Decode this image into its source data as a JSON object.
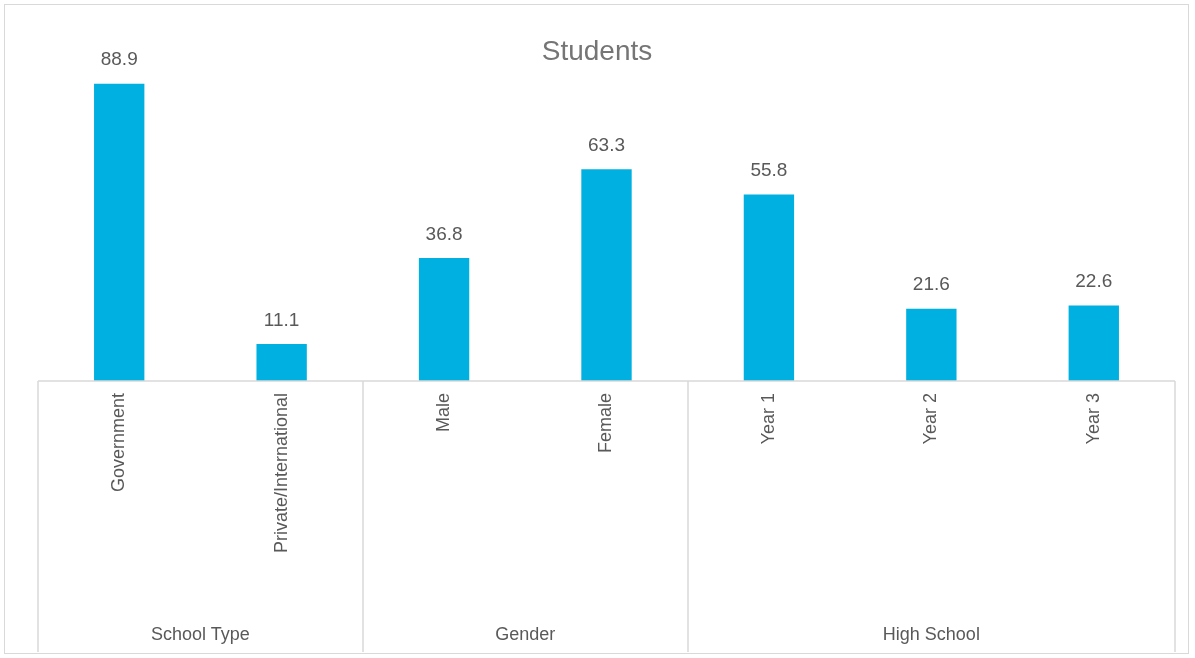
{
  "chart_data": {
    "type": "bar",
    "title": "Students",
    "categories": [
      "Government",
      "Private/International",
      "Male",
      "Female",
      "Year 1",
      "Year 2",
      "Year 3"
    ],
    "values": [
      88.9,
      11.1,
      36.8,
      63.3,
      55.8,
      21.6,
      22.6
    ],
    "color": "#00b0e0",
    "data_labels": true,
    "legend": false,
    "annotations": [
      "School Type",
      "Gender",
      "High School"
    ]
  }
}
